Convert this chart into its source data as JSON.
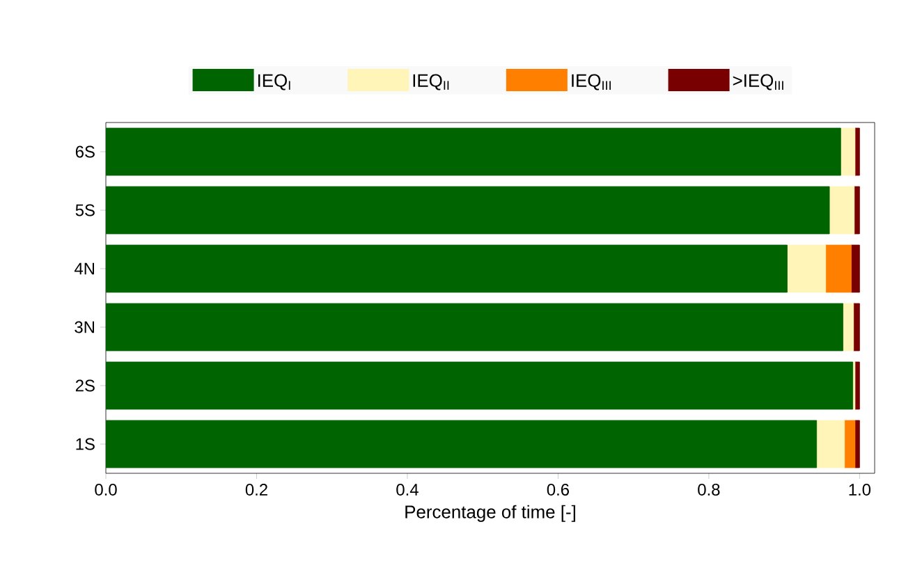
{
  "chart_data": {
    "type": "bar",
    "orientation": "horizontal",
    "stacked": true,
    "xlabel": "Percentage of time [-]",
    "categories": [
      "6S",
      "5S",
      "4N",
      "3N",
      "2S",
      "1S"
    ],
    "series": [
      {
        "name": "IEQ$_{I}$",
        "color": "#006400",
        "values": [
          0.975,
          0.96,
          0.904,
          0.978,
          0.991,
          0.943
        ]
      },
      {
        "name": "IEQ$_{II}$",
        "color": "#fff5b8",
        "values": [
          0.019,
          0.033,
          0.051,
          0.014,
          0.003,
          0.037
        ]
      },
      {
        "name": "IEQ$_{III}$",
        "color": "#ff8000",
        "values": [
          0,
          0,
          0.034,
          0,
          0,
          0.014
        ]
      },
      {
        "name": ">IEQ$_{III}$",
        "color": "#780000",
        "values": [
          0.006,
          0.007,
          0.011,
          0.008,
          0.006,
          0.006
        ]
      }
    ],
    "xlim": [
      0,
      1.02
    ],
    "xticks": [
      {
        "value": 0,
        "label": "0.0"
      },
      0.2,
      0.4,
      0.6,
      0.8,
      {
        "value": 1,
        "label": "1.0"
      }
    ],
    "legend": "top"
  }
}
